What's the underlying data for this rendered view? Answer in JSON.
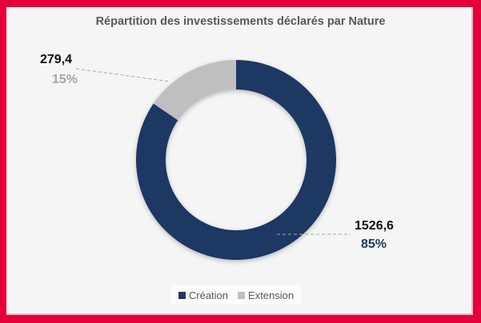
{
  "chart_data": {
    "type": "pie",
    "variant": "donut",
    "title": "Répartition des investissements  déclarés par Nature",
    "categories": [
      "Création",
      "Extension"
    ],
    "values": [
      1526.6,
      279.4
    ],
    "value_labels": [
      "1526,6",
      "279,4"
    ],
    "percent_labels": [
      "85%",
      "15%"
    ],
    "colors": [
      "#1f3864",
      "#bfbfbf"
    ],
    "legend_position": "bottom"
  }
}
